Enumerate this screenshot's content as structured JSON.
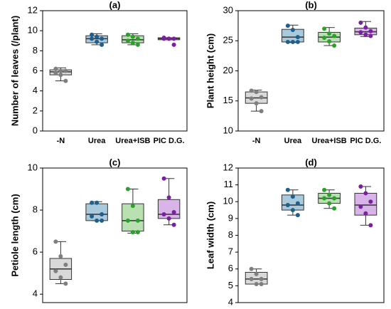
{
  "chart_data": [
    {
      "type": "box",
      "title": "(a)",
      "ylabel": "Number of leaves (/plant)",
      "categories": [
        "-N",
        "Urea",
        "Urea+ISB",
        "PIC D.G."
      ],
      "colors": [
        "#7f7f7f",
        "#1f5f8b",
        "#2ca02c",
        "#7b1fa2"
      ],
      "fill_colors": [
        "#d9d9d9",
        "#a9c9dc",
        "#b8e0b0",
        "#d8b4e8"
      ],
      "ylim": [
        0,
        12
      ],
      "yticks": [
        0,
        2,
        4,
        6,
        8,
        10,
        12
      ],
      "boxes": [
        {
          "min": 5.0,
          "q1": 5.6,
          "median": 5.9,
          "q3": 6.1,
          "max": 6.3,
          "points": [
            6.2,
            6.0,
            6.0,
            5.8,
            5.6,
            5.0
          ]
        },
        {
          "min": 8.6,
          "q1": 8.8,
          "median": 9.2,
          "q3": 9.5,
          "max": 9.7,
          "points": [
            9.6,
            9.4,
            9.2,
            9.2,
            8.9,
            8.6
          ]
        },
        {
          "min": 8.6,
          "q1": 8.8,
          "median": 9.1,
          "q3": 9.5,
          "max": 9.7,
          "points": [
            9.6,
            9.4,
            9.2,
            9.0,
            8.8,
            8.6
          ]
        },
        {
          "min": 9.1,
          "q1": 9.1,
          "median": 9.2,
          "q3": 9.3,
          "max": 9.3,
          "points": [
            9.3,
            9.2,
            9.2,
            9.2,
            9.2,
            8.6
          ]
        }
      ]
    },
    {
      "type": "box",
      "title": "(b)",
      "ylabel": "Plant height (cm)",
      "categories": [
        "-N",
        "Urea",
        "Urea+ISB",
        "PIC D.G."
      ],
      "colors": [
        "#7f7f7f",
        "#1f5f8b",
        "#2ca02c",
        "#7b1fa2"
      ],
      "fill_colors": [
        "#d9d9d9",
        "#a9c9dc",
        "#b8e0b0",
        "#d8b4e8"
      ],
      "ylim": [
        10,
        30
      ],
      "yticks": [
        10,
        15,
        20,
        25,
        30
      ],
      "boxes": [
        {
          "min": 13.3,
          "q1": 14.6,
          "median": 15.5,
          "q3": 16.5,
          "max": 16.8,
          "points": [
            16.7,
            16.5,
            15.6,
            15.4,
            14.6,
            13.3
          ]
        },
        {
          "min": 24.7,
          "q1": 24.8,
          "median": 25.6,
          "q3": 26.9,
          "max": 27.6,
          "points": [
            27.5,
            26.8,
            25.6,
            24.8,
            24.8,
            24.8
          ]
        },
        {
          "min": 24.2,
          "q1": 24.8,
          "median": 25.6,
          "q3": 26.4,
          "max": 27.2,
          "points": [
            27.0,
            26.2,
            25.8,
            25.5,
            24.9,
            24.2
          ]
        },
        {
          "min": 25.7,
          "q1": 26.0,
          "median": 26.5,
          "q3": 27.1,
          "max": 28.2,
          "points": [
            28.0,
            27.2,
            26.6,
            26.4,
            26.0,
            25.8
          ]
        }
      ]
    },
    {
      "type": "box",
      "title": "(c)",
      "ylabel": "Petiole length (cm)",
      "categories": [
        "-N",
        "Urea",
        "Urea+ISB",
        "PIC D.G."
      ],
      "colors": [
        "#7f7f7f",
        "#1f5f8b",
        "#2ca02c",
        "#7b1fa2"
      ],
      "fill_colors": [
        "#d9d9d9",
        "#a9c9dc",
        "#b8e0b0",
        "#d8b4e8"
      ],
      "ylim": [
        3.6,
        10
      ],
      "yticks": [
        4,
        6,
        8,
        10
      ],
      "boxes": [
        {
          "min": 4.5,
          "q1": 4.7,
          "median": 5.2,
          "q3": 5.7,
          "max": 6.5,
          "points": [
            6.5,
            5.8,
            5.4,
            5.1,
            4.8,
            4.5
          ]
        },
        {
          "min": 7.5,
          "q1": 7.5,
          "median": 7.8,
          "q3": 8.3,
          "max": 8.4,
          "points": [
            8.35,
            8.35,
            7.8,
            7.7,
            7.5,
            7.5
          ]
        },
        {
          "min": 6.9,
          "q1": 7.0,
          "median": 7.5,
          "q3": 8.3,
          "max": 9.0,
          "points": [
            9.0,
            8.2,
            7.5,
            7.5,
            6.95,
            6.95
          ]
        },
        {
          "min": 7.3,
          "q1": 7.6,
          "median": 7.8,
          "q3": 8.5,
          "max": 9.5,
          "points": [
            9.5,
            8.6,
            7.9,
            7.8,
            7.6,
            7.3
          ]
        }
      ]
    },
    {
      "type": "box",
      "title": "(d)",
      "ylabel": "Leaf width (cm)",
      "categories": [
        "-N",
        "Urea",
        "Urea+ISB",
        "PIC D.G."
      ],
      "colors": [
        "#7f7f7f",
        "#1f5f8b",
        "#2ca02c",
        "#7b1fa2"
      ],
      "fill_colors": [
        "#d9d9d9",
        "#a9c9dc",
        "#b8e0b0",
        "#d8b4e8"
      ],
      "ylim": [
        4,
        12
      ],
      "yticks": [
        4,
        5,
        6,
        7,
        8,
        9,
        10,
        11,
        12
      ],
      "boxes": [
        {
          "min": 5.1,
          "q1": 5.1,
          "median": 5.4,
          "q3": 5.8,
          "max": 6.0,
          "points": [
            6.0,
            5.7,
            5.4,
            5.4,
            5.1,
            5.1
          ]
        },
        {
          "min": 9.2,
          "q1": 9.5,
          "median": 9.8,
          "q3": 10.4,
          "max": 10.7,
          "points": [
            10.7,
            10.3,
            9.9,
            9.8,
            9.5,
            9.2
          ]
        },
        {
          "min": 9.6,
          "q1": 9.9,
          "median": 10.2,
          "q3": 10.5,
          "max": 10.7,
          "points": [
            10.7,
            10.4,
            10.2,
            10.2,
            9.9,
            9.6
          ]
        },
        {
          "min": 8.6,
          "q1": 9.2,
          "median": 9.8,
          "q3": 10.5,
          "max": 10.9,
          "points": [
            10.9,
            10.5,
            10.0,
            9.7,
            9.3,
            8.6
          ]
        }
      ]
    }
  ]
}
